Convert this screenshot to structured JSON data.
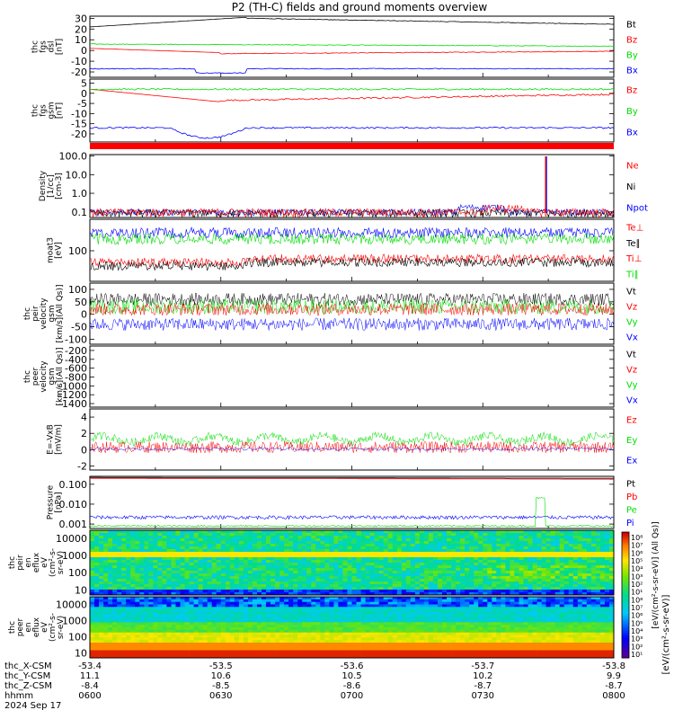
{
  "title": "P2 (TH-C) fields and ground moments overview",
  "colors": {
    "black": "#000000",
    "red": "#ff0000",
    "green": "#00dd00",
    "blue": "#0000ff"
  },
  "panels": [
    {
      "id": "fgs_dsl",
      "ylabel": [
        "thc",
        "fgs",
        "dsl",
        "[nT]"
      ],
      "ticks": [
        30,
        20,
        10,
        0,
        -10,
        -20
      ],
      "ylim": [
        -25,
        32
      ],
      "legend": [
        {
          "label": "Bt",
          "color": "black"
        },
        {
          "label": "Bz",
          "color": "red"
        },
        {
          "label": "By",
          "color": "green"
        },
        {
          "label": "Bx",
          "color": "blue"
        }
      ]
    },
    {
      "id": "fgs_gsm",
      "ylabel": [
        "thc",
        "fgs",
        "gsm",
        "[nT]"
      ],
      "ticks": [
        5,
        0,
        -5,
        -10,
        -15,
        -20
      ],
      "ylim": [
        -24,
        7
      ],
      "legend": [
        {
          "label": "Bz",
          "color": "red"
        },
        {
          "label": "By",
          "color": "green"
        },
        {
          "label": "Bx",
          "color": "blue"
        }
      ]
    },
    {
      "id": "density",
      "ylabel": [
        "Density",
        "[1/cc]",
        "[cm-3]"
      ],
      "ticks": [
        "100.0",
        "10.0",
        "1.0",
        "0.1"
      ],
      "ylim": [
        0.05,
        120
      ],
      "log": true,
      "legend": [
        {
          "label": "Ne",
          "color": "red"
        },
        {
          "label": "Ni",
          "color": "black"
        },
        {
          "label": "Npot",
          "color": "blue"
        }
      ]
    },
    {
      "id": "temp",
      "ylabel": [
        "moat3",
        "[eV]"
      ],
      "ticks": [
        "100"
      ],
      "log": true,
      "legend": [
        {
          "label": "Te⊥",
          "color": "red"
        },
        {
          "label": "Te∥",
          "color": "black"
        },
        {
          "label": "Ti⊥",
          "color": "red"
        },
        {
          "label": "Ti∥",
          "color": "green"
        }
      ]
    },
    {
      "id": "peir_v",
      "ylabel": [
        "thc",
        "peir",
        "velocity",
        "gsm",
        "[km/s](All Qs)]"
      ],
      "ticks": [
        100,
        50,
        0,
        -50,
        -100
      ],
      "ylim": [
        -120,
        125
      ],
      "legend": [
        {
          "label": "Vt",
          "color": "black"
        },
        {
          "label": "Vz",
          "color": "red"
        },
        {
          "label": "Vy",
          "color": "green"
        },
        {
          "label": "Vx",
          "color": "blue"
        }
      ]
    },
    {
      "id": "peer_v",
      "ylabel": [
        "thc",
        "peer",
        "velocity",
        "gsm",
        "[km/s](All Qs)]"
      ],
      "ticks": [
        -200,
        -400,
        -600,
        -800,
        -1000,
        -1200,
        -1400
      ],
      "ylim": [
        -1480,
        -100
      ],
      "legend": [
        {
          "label": "Vt",
          "color": "black"
        },
        {
          "label": "Vz",
          "color": "red"
        },
        {
          "label": "Vy",
          "color": "green"
        },
        {
          "label": "Vx",
          "color": "blue"
        }
      ]
    },
    {
      "id": "efield",
      "ylabel": [
        "E=-VxB",
        "[mV/m]"
      ],
      "ticks": [
        4,
        2,
        0,
        -2
      ],
      "ylim": [
        -2.5,
        5
      ],
      "legend": [
        {
          "label": "Ez",
          "color": "red"
        },
        {
          "label": "Ey",
          "color": "green"
        },
        {
          "label": "Ex",
          "color": "blue"
        }
      ]
    },
    {
      "id": "pressure",
      "ylabel": [
        "Pressure",
        "[nPa]"
      ],
      "ticks": [
        "0.100",
        "0.010",
        "0.001"
      ],
      "ylim": [
        0.0006,
        0.25
      ],
      "log": true,
      "legend": [
        {
          "label": "Pt",
          "color": "black"
        },
        {
          "label": "Pb",
          "color": "red"
        },
        {
          "label": "Pe",
          "color": "green"
        },
        {
          "label": "Pi",
          "color": "blue"
        }
      ]
    },
    {
      "id": "peir_eflux",
      "ylabel": [
        "thc",
        "peir",
        "en",
        "eflux",
        "eV",
        "(cm²-s-",
        "sr-eV)"
      ],
      "ticks": [
        10000,
        1000,
        100,
        10
      ],
      "ylim": [
        5,
        30000
      ],
      "log": true
    },
    {
      "id": "peer_eflux",
      "ylabel": [
        "thc",
        "peer",
        "en",
        "eflux",
        "eV",
        "(cm²-s-",
        "sr-eV)"
      ],
      "ticks": [
        10000,
        1000,
        100,
        10
      ],
      "ylim": [
        5,
        30000
      ],
      "log": true
    }
  ],
  "colorbar": {
    "ticks": [
      "10⁸",
      "10⁷",
      "10⁶",
      "10⁵",
      "10⁴",
      "10³",
      "10²",
      "10¹",
      "10⁸",
      "10⁷",
      "10⁶",
      "10⁵",
      "10⁴",
      "10³",
      "10²",
      "10¹"
    ],
    "label": "[eV/(cm²-s-sr-eV)]",
    "sublabel": "[eV/(cm²-s-sr-eV)] (All Qs)]"
  },
  "x_axis": {
    "rows": [
      {
        "label": "thc_X-CSM",
        "values": [
          "-53.4",
          "-53.5",
          "-53.6",
          "-53.7",
          "-53.8"
        ]
      },
      {
        "label": "thc_Y-CSM",
        "values": [
          "11.1",
          "10.6",
          "10.5",
          "10.2",
          "9.9"
        ]
      },
      {
        "label": "thc_Z-CSM",
        "values": [
          "-8.4",
          "-8.5",
          "-8.6",
          "-8.7",
          "-8.7"
        ]
      },
      {
        "label": "hhmm",
        "values": [
          "0600",
          "0630",
          "0700",
          "0730",
          "0800"
        ]
      }
    ],
    "date": "2024 Sep 17"
  }
}
